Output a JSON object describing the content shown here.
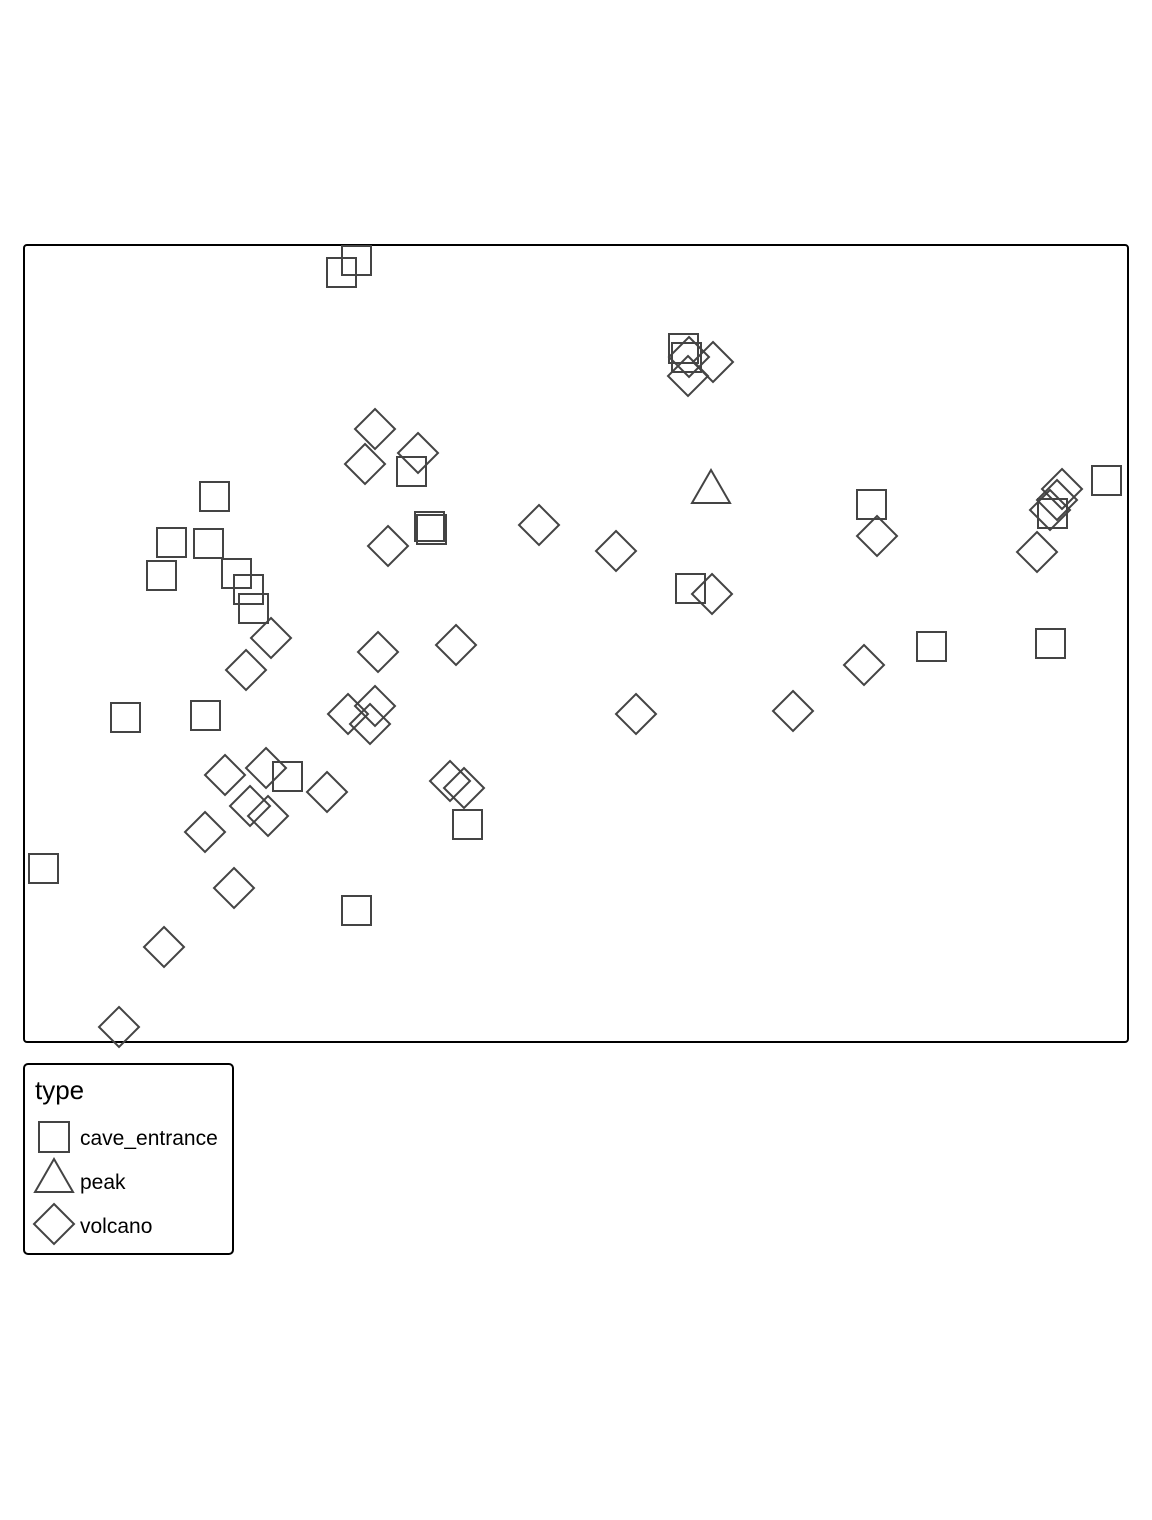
{
  "legend": {
    "title": "type",
    "entries": [
      {
        "label": "cave_entrance",
        "shape": "square-icon"
      },
      {
        "label": "peak",
        "shape": "triangle-icon"
      },
      {
        "label": "volcano",
        "shape": "diamond-icon"
      }
    ]
  },
  "colors": {
    "marker_stroke": "#444444",
    "frame_stroke": "#000000",
    "background": "#ffffff"
  }
}
